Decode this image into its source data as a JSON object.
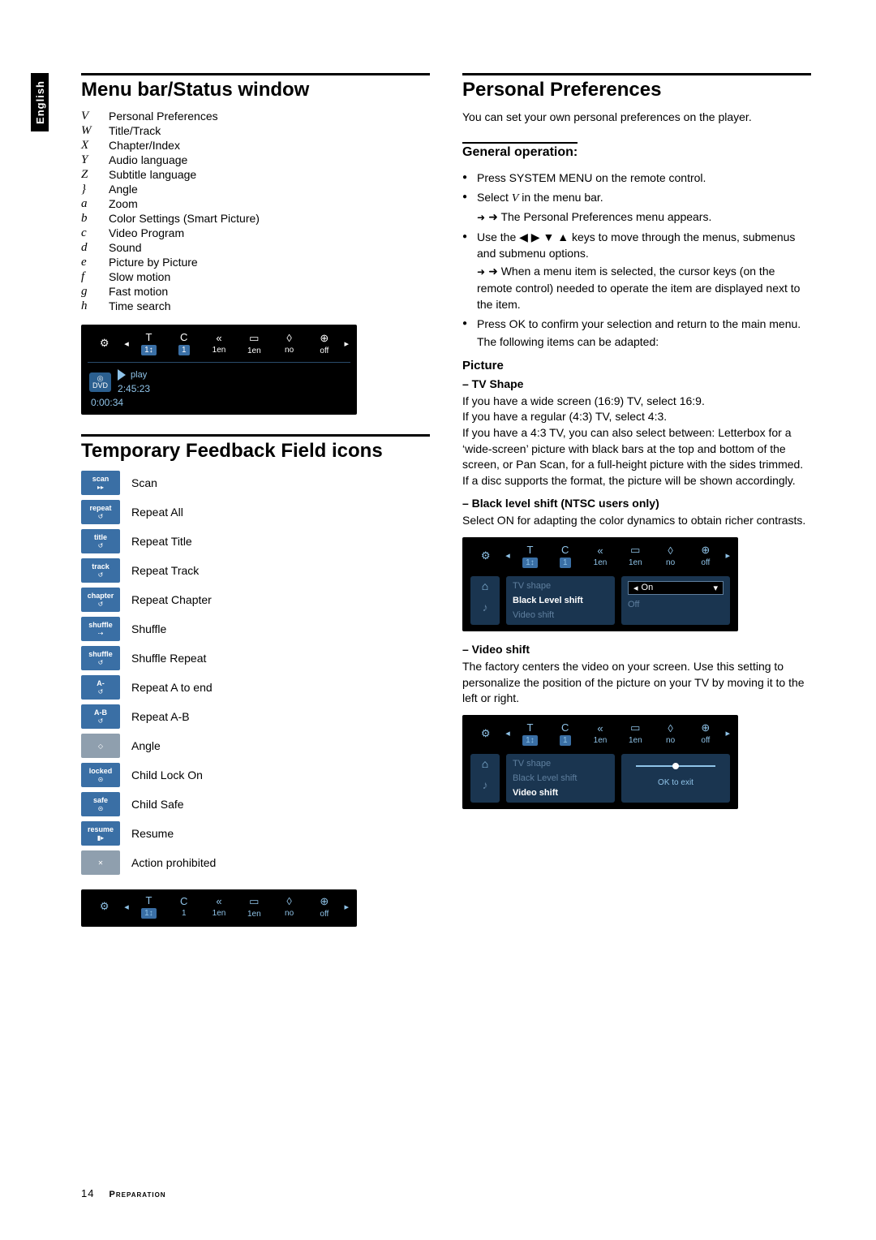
{
  "side_tab": "English",
  "left": {
    "h_menu_bar": "Menu bar/Status window",
    "menu_items": [
      {
        "k": "V",
        "v": "Personal Preferences"
      },
      {
        "k": "W",
        "v": "Title/Track"
      },
      {
        "k": "X",
        "v": "Chapter/Index"
      },
      {
        "k": "Y",
        "v": "Audio language"
      },
      {
        "k": "Z",
        "v": "Subtitle language"
      },
      {
        "k": "}",
        "v": "Angle"
      },
      {
        "k": "a",
        "v": "Zoom"
      },
      {
        "k": "b",
        "v": "Color Settings (Smart Picture)"
      },
      {
        "k": "c",
        "v": "Video Program"
      },
      {
        "k": "d",
        "v": "Sound"
      },
      {
        "k": "e",
        "v": "Picture by Picture"
      },
      {
        "k": "f",
        "v": "Slow motion"
      },
      {
        "k": "g",
        "v": "Fast motion"
      },
      {
        "k": "h",
        "v": "Time search"
      }
    ],
    "shot1": {
      "bar": [
        {
          "icon": "⚙",
          "label": ""
        },
        {
          "icon": "T",
          "label": "1↕",
          "sel": true
        },
        {
          "icon": "C",
          "label": "1",
          "sel": true
        },
        {
          "icon": "«",
          "label": "1en"
        },
        {
          "icon": "▭",
          "label": "1en"
        },
        {
          "icon": "◊",
          "label": "no"
        },
        {
          "icon": "⊕",
          "label": "off"
        }
      ],
      "dvd": "DVD",
      "play": "play",
      "time1": "2:45:23",
      "time2": "0:00:34"
    },
    "h_temp_icons": "Temporary Feedback Field icons",
    "fb": [
      {
        "tag": "scan",
        "sub": "▸▸",
        "label": "Scan"
      },
      {
        "tag": "repeat",
        "sub": "↺",
        "label": "Repeat All"
      },
      {
        "tag": "title",
        "sub": "↺",
        "label": "Repeat Title"
      },
      {
        "tag": "track",
        "sub": "↺",
        "label": "Repeat Track"
      },
      {
        "tag": "chapter",
        "sub": "↺",
        "label": "Repeat Chapter"
      },
      {
        "tag": "shuffle",
        "sub": "⇢",
        "label": "Shuffle"
      },
      {
        "tag": "shuffle",
        "sub": "↺",
        "label": "Shuffle Repeat"
      },
      {
        "tag": "A-",
        "sub": "↺",
        "label": "Repeat A to end"
      },
      {
        "tag": "A-B",
        "sub": "↺",
        "label": "Repeat A-B"
      },
      {
        "tag": "",
        "sub": "◇",
        "gray": true,
        "label": "Angle"
      },
      {
        "tag": "locked",
        "sub": "⊝",
        "label": "Child Lock On"
      },
      {
        "tag": "safe",
        "sub": "⊝",
        "label": "Child Safe"
      },
      {
        "tag": "resume",
        "sub": "▮▸",
        "label": "Resume"
      },
      {
        "tag": "",
        "sub": "✕",
        "gray": true,
        "label": "Action prohibited"
      }
    ],
    "shot_bottom": {
      "bar": [
        {
          "icon": "⚙",
          "label": ""
        },
        {
          "icon": "T",
          "label": "1↕",
          "sel": true
        },
        {
          "icon": "C",
          "label": "1"
        },
        {
          "icon": "«",
          "label": "1en"
        },
        {
          "icon": "▭",
          "label": "1en"
        },
        {
          "icon": "◊",
          "label": "no"
        },
        {
          "icon": "⊕",
          "label": "off"
        }
      ]
    }
  },
  "right": {
    "h_pref": "Personal Preferences",
    "intro": "You can set your own personal preferences on the player.",
    "h_genop": "General operation:",
    "b1": "Press SYSTEM MENU on the remote control.",
    "b2a": "Select ",
    "b2b": "V",
    "b2c": " in the menu bar.",
    "b2arrow": "The Personal Preferences menu appears.",
    "b3a": "Use the ◀ ▶ ▼ ▲ keys to move through the menus, submenus and submenu options.",
    "b3arrow": "When a menu item is selected, the cursor keys (on the remote control) needed to operate the item are displayed next to the item.",
    "b4": "Press OK to confirm your selection and return to the main menu.",
    "b4b": "The following items can be adapted:",
    "h_picture": "Picture",
    "h_tvshape": "– TV Shape",
    "tvshape_text": "If you have a wide screen (16:9) TV, select 16:9.\nIf you have a regular (4:3) TV, select 4:3.\nIf you have a 4:3 TV, you can also select between: Letterbox for a ‘wide-screen’ picture with black bars at the top and bottom of the screen, or Pan Scan, for a full-height picture with the sides trimmed. If a disc supports the format, the picture will be shown accordingly.",
    "h_black": "– Black level shift (NTSC users only)",
    "black_text": "Select ON for adapting the color dynamics to obtain richer contrasts.",
    "shot_black": {
      "list": [
        {
          "t": "TV shape",
          "dim": true
        },
        {
          "t": "Black Level shift",
          "act": true
        },
        {
          "t": "Video shift",
          "dim": true
        }
      ],
      "val": "On",
      "off": "Off"
    },
    "h_vshift": "– Video shift",
    "vshift_text": "The factory centers the video on your screen. Use this setting to personalize the position of the picture on your TV by moving it to the left or right.",
    "shot_vshift": {
      "list": [
        {
          "t": "TV shape",
          "dim": true
        },
        {
          "t": "Black Level shift",
          "dim": true
        },
        {
          "t": "Video shift",
          "act": true
        }
      ],
      "ok": "OK to exit"
    }
  },
  "footer": {
    "page": "14",
    "title": "Preparation"
  },
  "colors": {
    "blue": "#3a6fa5",
    "lightblue": "#8fc3e8",
    "panel": "#1a3550",
    "gray": "#8f9fae"
  }
}
